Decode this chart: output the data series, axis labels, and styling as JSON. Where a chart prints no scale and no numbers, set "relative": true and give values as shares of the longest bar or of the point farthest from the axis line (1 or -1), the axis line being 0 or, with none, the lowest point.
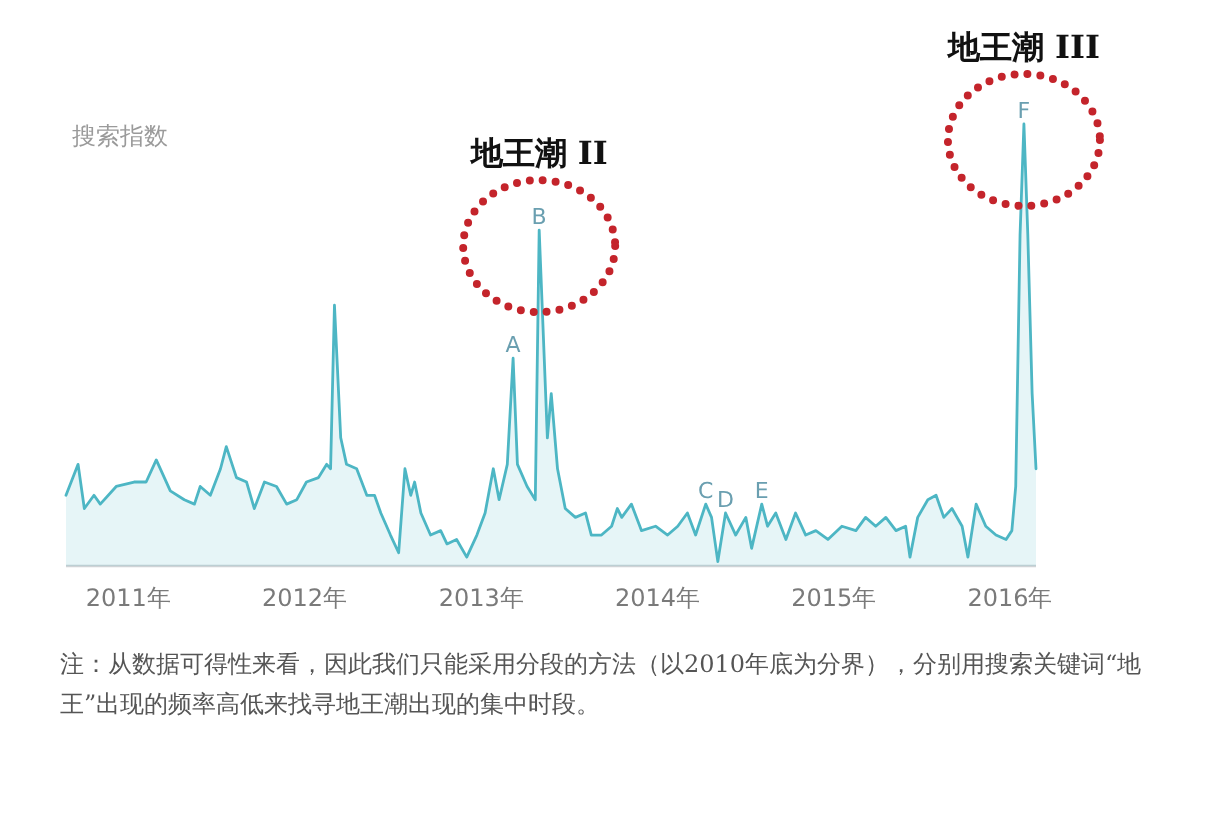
{
  "chart_data": {
    "type": "area",
    "relative": true,
    "ylabel": "搜索指数",
    "xlim": [
      "2010-08-25",
      "2016-02-24"
    ],
    "xticks": [
      {
        "value": "2011-01-01",
        "label": "2011年"
      },
      {
        "value": "2012-01-01",
        "label": "2012年"
      },
      {
        "value": "2013-01-01",
        "label": "2013年"
      },
      {
        "value": "2014-01-01",
        "label": "2014年"
      },
      {
        "value": "2015-01-01",
        "label": "2015年"
      },
      {
        "value": "2016-01-01",
        "label": "2016年"
      }
    ],
    "x": [
      "2010-08-25",
      "2010-09-19",
      "2010-10-02",
      "2010-10-22",
      "2010-11-04",
      "2010-12-07",
      "2011-01-13",
      "2011-02-07",
      "2011-02-28",
      "2011-03-29",
      "2011-04-27",
      "2011-05-18",
      "2011-05-30",
      "2011-06-20",
      "2011-07-11",
      "2011-07-23",
      "2011-08-13",
      "2011-09-03",
      "2011-09-19",
      "2011-10-10",
      "2011-11-04",
      "2011-11-25",
      "2011-12-16",
      "2012-01-05",
      "2012-01-30",
      "2012-02-16",
      "2012-02-24",
      "2012-03-03",
      "2012-03-16",
      "2012-03-28",
      "2012-04-18",
      "2012-05-09",
      "2012-05-25",
      "2012-06-07",
      "2012-06-27",
      "2012-07-14",
      "2012-07-27",
      "2012-08-08",
      "2012-08-16",
      "2012-08-29",
      "2012-09-18",
      "2012-10-09",
      "2012-10-22",
      "2012-11-11",
      "2012-12-02",
      "2012-12-23",
      "2013-01-09",
      "2013-01-26",
      "2013-02-07",
      "2013-02-24",
      "2013-03-08",
      "2013-03-17",
      "2013-04-06",
      "2013-04-23",
      "2013-05-01",
      "2013-05-18",
      "2013-05-26",
      "2013-06-08",
      "2013-06-24",
      "2013-07-15",
      "2013-08-05",
      "2013-08-17",
      "2013-09-07",
      "2013-09-28",
      "2013-10-10",
      "2013-10-19",
      "2013-11-08",
      "2013-11-29",
      "2013-12-28",
      "2014-01-22",
      "2014-02-12",
      "2014-03-04",
      "2014-03-21",
      "2014-04-11",
      "2014-04-23",
      "2014-05-06",
      "2014-05-22",
      "2014-06-12",
      "2014-07-03",
      "2014-07-15",
      "2014-08-05",
      "2014-08-17",
      "2014-09-03",
      "2014-09-24",
      "2014-10-14",
      "2014-11-04",
      "2014-11-25",
      "2014-12-20",
      "2015-01-18",
      "2015-02-16",
      "2015-03-08",
      "2015-03-29",
      "2015-04-19",
      "2015-05-10",
      "2015-05-30",
      "2015-06-08",
      "2015-06-24",
      "2015-07-15",
      "2015-08-01",
      "2015-08-17",
      "2015-09-03",
      "2015-09-24",
      "2015-10-06",
      "2015-10-23",
      "2015-11-12",
      "2015-12-03",
      "2015-12-24",
      "2016-01-05",
      "2016-01-13",
      "2016-01-22",
      "2016-01-30",
      "2016-02-07",
      "2016-02-16",
      "2016-02-24"
    ],
    "series": [
      {
        "color": "#4db6c4",
        "values": [
          0.16,
          0.23,
          0.13,
          0.16,
          0.14,
          0.18,
          0.19,
          0.19,
          0.24,
          0.17,
          0.15,
          0.14,
          0.18,
          0.16,
          0.22,
          0.27,
          0.2,
          0.19,
          0.13,
          0.19,
          0.18,
          0.14,
          0.15,
          0.19,
          0.2,
          0.23,
          0.22,
          0.59,
          0.29,
          0.23,
          0.22,
          0.16,
          0.16,
          0.12,
          0.07,
          0.03,
          0.22,
          0.16,
          0.19,
          0.12,
          0.07,
          0.08,
          0.05,
          0.06,
          0.02,
          0.07,
          0.12,
          0.22,
          0.15,
          0.23,
          0.47,
          0.23,
          0.18,
          0.15,
          0.76,
          0.29,
          0.39,
          0.22,
          0.13,
          0.11,
          0.12,
          0.07,
          0.07,
          0.09,
          0.13,
          0.11,
          0.14,
          0.08,
          0.09,
          0.07,
          0.09,
          0.12,
          0.07,
          0.14,
          0.11,
          0.01,
          0.12,
          0.07,
          0.11,
          0.04,
          0.14,
          0.09,
          0.12,
          0.06,
          0.12,
          0.07,
          0.08,
          0.06,
          0.09,
          0.08,
          0.11,
          0.09,
          0.11,
          0.08,
          0.09,
          0.02,
          0.11,
          0.15,
          0.16,
          0.11,
          0.13,
          0.09,
          0.02,
          0.14,
          0.09,
          0.07,
          0.06,
          0.08,
          0.18,
          0.75,
          1,
          0.75,
          0.39,
          0.22
        ]
      }
    ],
    "annotations": [
      {
        "text": "A",
        "x": "2013-03-08",
        "y": 0.47
      },
      {
        "text": "B",
        "x": "2013-05-01",
        "y": 0.76
      },
      {
        "text": "C",
        "x": "2014-04-11",
        "y": 0.14
      },
      {
        "text": "D",
        "x": "2014-05-22",
        "y": 0.12
      },
      {
        "text": "E",
        "x": "2014-08-05",
        "y": 0.14
      },
      {
        "text": "F",
        "x": "2016-01-30",
        "y": 1
      },
      {
        "text": "地王潮 II",
        "x": "2013-05-01",
        "y": 0.76
      },
      {
        "text": "地王潮 III",
        "x": "2016-01-30",
        "y": 1
      },
      "注：从数据可得性来看，因此我们只能采用分段的方法（以2010年底为分界），分别用搜索关键词“地王”出现的频率高低来找寻地王潮出现的集中时段。"
    ]
  }
}
